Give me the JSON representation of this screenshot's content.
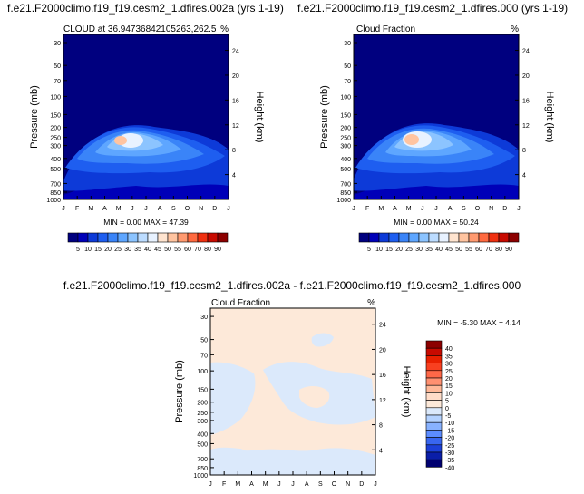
{
  "chart_data": [
    {
      "type": "heatmap",
      "title": "f.e21.F2000climo.f19_f19.cesm2_1.dfires.002a (yrs 1-19)",
      "subtitle_left": "CLOUD at 36.94736842105263,262.5",
      "subtitle_right": "%",
      "ylabel": "Pressure (mb)",
      "ylabel_right": "Height (km)",
      "x_ticks": [
        "J",
        "F",
        "M",
        "A",
        "M",
        "J",
        "J",
        "A",
        "S",
        "O",
        "N",
        "D",
        "J"
      ],
      "y_ticks": [
        "30",
        "50",
        "70",
        "100",
        "150",
        "200",
        "250",
        "300",
        "400",
        "500",
        "700",
        "850",
        "1000"
      ],
      "y2_ticks": [
        "24",
        "20",
        "16",
        "12",
        "8",
        "4"
      ],
      "stats": "MIN =   0.00 MAX =  47.39",
      "min": 0.0,
      "max": 47.39,
      "colorbar": [
        "5",
        "10",
        "15",
        "20",
        "25",
        "30",
        "35",
        "40",
        "45",
        "50",
        "55",
        "60",
        "70",
        "80",
        "90"
      ],
      "peak_month": "May",
      "peak_pressure": 250
    },
    {
      "type": "heatmap",
      "title": "f.e21.F2000climo.f19_f19.cesm2_1.dfires.000 (yrs 1-19)",
      "subtitle_left": "Cloud Fraction",
      "subtitle_right": "%",
      "ylabel": "Pressure (mb)",
      "ylabel_right": "Height (km)",
      "x_ticks": [
        "J",
        "F",
        "M",
        "A",
        "M",
        "J",
        "J",
        "A",
        "S",
        "O",
        "N",
        "D",
        "J"
      ],
      "y_ticks": [
        "30",
        "50",
        "70",
        "100",
        "150",
        "200",
        "250",
        "300",
        "400",
        "500",
        "700",
        "850",
        "1000"
      ],
      "y2_ticks": [
        "24",
        "20",
        "16",
        "12",
        "8",
        "4"
      ],
      "stats": "MIN =   0.00 MAX =  50.24",
      "min": 0.0,
      "max": 50.24,
      "colorbar": [
        "5",
        "10",
        "15",
        "20",
        "25",
        "30",
        "35",
        "40",
        "45",
        "50",
        "55",
        "60",
        "70",
        "80",
        "90"
      ],
      "peak_month": "May",
      "peak_pressure": 250
    },
    {
      "type": "heatmap",
      "title": "f.e21.F2000climo.f19_f19.cesm2_1.dfires.002a - f.e21.F2000climo.f19_f19.cesm2_1.dfires.000",
      "subtitle_left": "Cloud Fraction",
      "subtitle_right": "%",
      "ylabel": "Pressure (mb)",
      "ylabel_right": "Height (km)",
      "x_ticks": [
        "J",
        "F",
        "M",
        "A",
        "M",
        "J",
        "J",
        "A",
        "S",
        "O",
        "N",
        "D",
        "J"
      ],
      "y_ticks": [
        "30",
        "50",
        "70",
        "100",
        "150",
        "200",
        "250",
        "300",
        "400",
        "500",
        "700",
        "850",
        "1000"
      ],
      "y2_ticks": [
        "24",
        "20",
        "16",
        "12",
        "8",
        "4"
      ],
      "stats": "MIN =  -5.30 MAX =   4.14",
      "min": -5.3,
      "max": 4.14,
      "colorbar": [
        "40",
        "35",
        "30",
        "25",
        "20",
        "15",
        "10",
        "5",
        "0",
        "-5",
        "-10",
        "-15",
        "-20",
        "-25",
        "-30",
        "-35",
        "-40"
      ]
    }
  ],
  "colors": {
    "seq": [
      "#00007f",
      "#0000b8",
      "#0d3ad8",
      "#1e5ef0",
      "#3a84f8",
      "#5ea6ff",
      "#8cc4ff",
      "#bcdcff",
      "#e8f2ff",
      "#ffe4cf",
      "#ffc4a0",
      "#ff9a70",
      "#ff6a40",
      "#f03010",
      "#c80a00",
      "#8c0000"
    ],
    "div": [
      "#8c0000",
      "#c80a00",
      "#e82000",
      "#f84020",
      "#ff6848",
      "#ff9070",
      "#ffb898",
      "#ffdcc8",
      "#fde9d9",
      "#dbe9fb",
      "#b4d2ff",
      "#88b2ff",
      "#5c8cff",
      "#3866f0",
      "#1c40d8",
      "#0a1ea8",
      "#000070"
    ]
  }
}
